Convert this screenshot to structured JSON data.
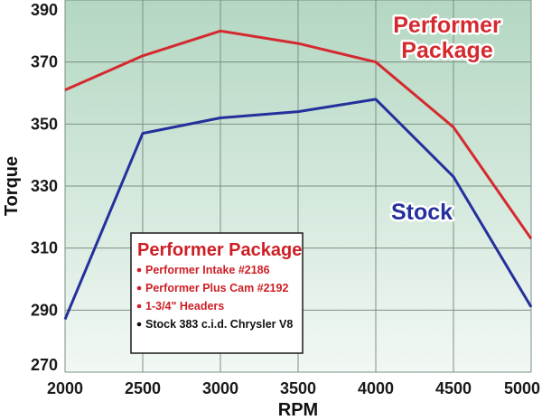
{
  "chart_data": {
    "type": "line",
    "x": [
      2000,
      2500,
      3000,
      3500,
      4000,
      4500,
      5000
    ],
    "xlabel": "RPM",
    "ylabel": "Torque",
    "xlim": [
      2000,
      5000
    ],
    "ylim": [
      270,
      390
    ],
    "x_ticks": [
      "2000",
      "2500",
      "3000",
      "3500",
      "4000",
      "4500",
      "5000"
    ],
    "y_ticks": [
      "390",
      "370",
      "350",
      "330",
      "310",
      "290",
      "270"
    ],
    "series": [
      {
        "name": "Performer Package",
        "label_lines": [
          "Performer",
          "Package"
        ],
        "color": "#d42a2f",
        "values": [
          361,
          372,
          380,
          376,
          370,
          349,
          313
        ]
      },
      {
        "name": "Stock",
        "label_lines": [
          "Stock"
        ],
        "color": "#24309c",
        "values": [
          287,
          347,
          352,
          354,
          358,
          333,
          291
        ]
      }
    ],
    "legend": {
      "title": "Performer Package",
      "placement": "bottom-left",
      "items": [
        {
          "text": "Performer Intake #2186",
          "color": "#cc1f24"
        },
        {
          "text": "Performer Plus Cam #2192",
          "color": "#cc1f24"
        },
        {
          "text": "1-3/4\" Headers",
          "color": "#cc1f24"
        },
        {
          "text": "Stock 383 c.i.d. Chrysler V8",
          "color": "#111111"
        }
      ]
    },
    "grid": true,
    "background_gradient": [
      "#b3d7c2",
      "#f2f8f4"
    ]
  }
}
